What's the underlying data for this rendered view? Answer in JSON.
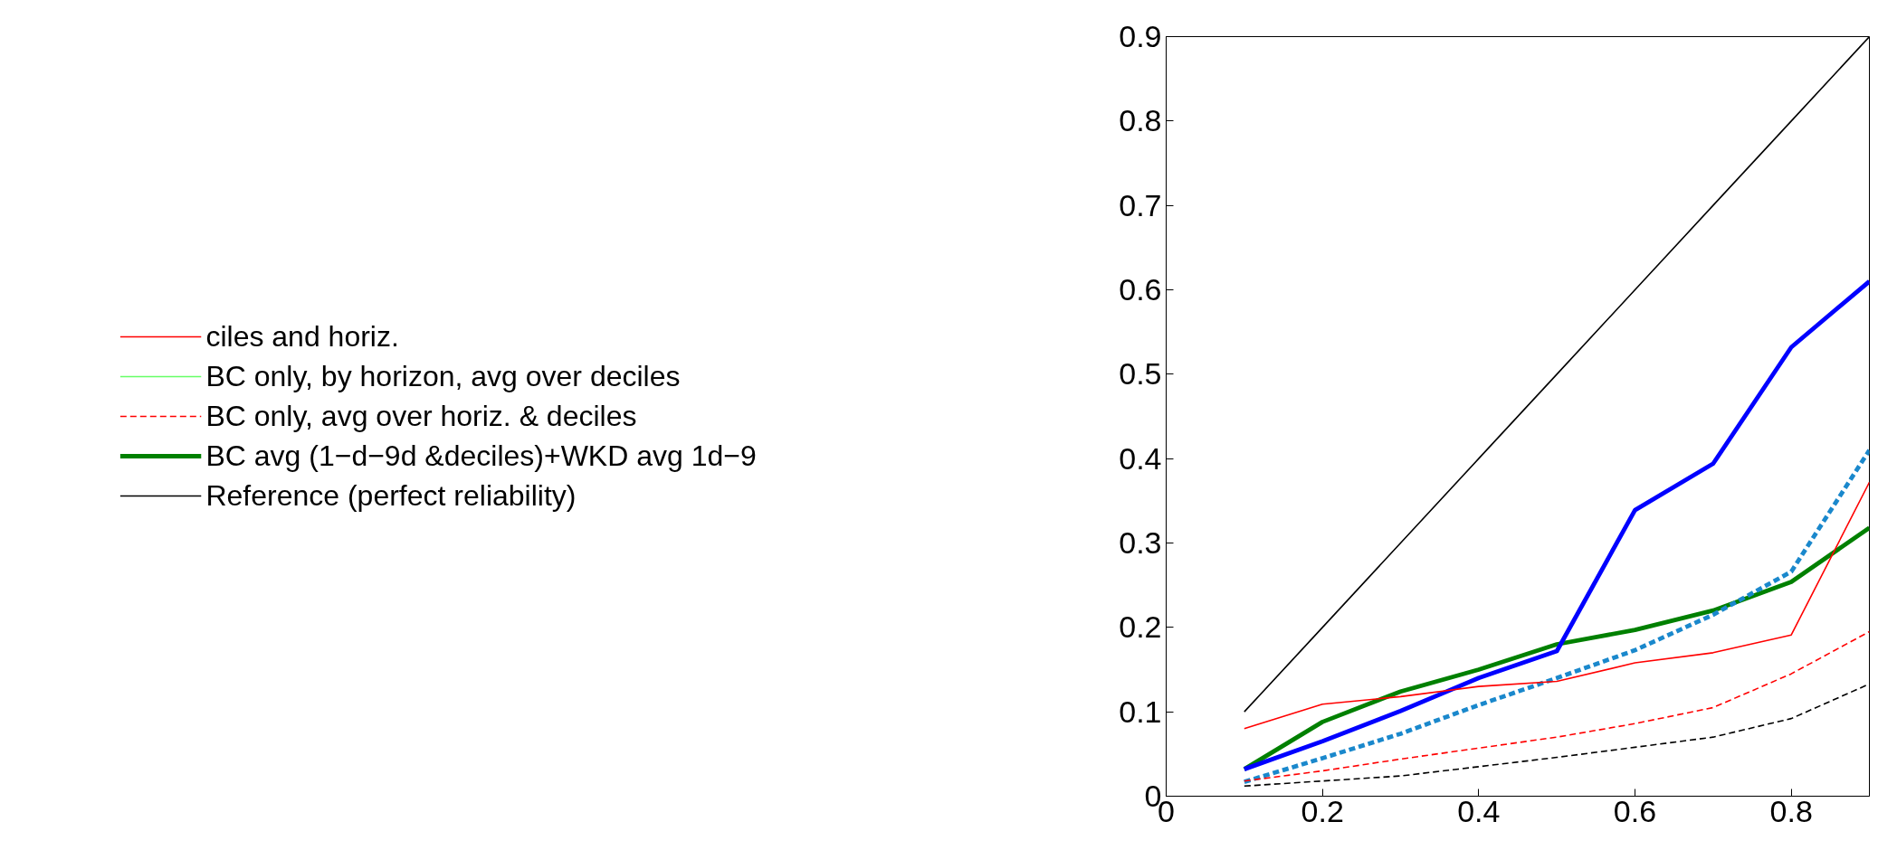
{
  "chart_data": {
    "type": "line",
    "x": [
      0.1,
      0.2,
      0.3,
      0.4,
      0.5,
      0.6,
      0.7,
      0.8,
      0.9
    ],
    "xlim": [
      0,
      0.9
    ],
    "ylim": [
      0,
      0.9
    ],
    "xticks": [
      0,
      0.2,
      0.4,
      0.6,
      0.8
    ],
    "yticks": [
      0,
      0.1,
      0.2,
      0.3,
      0.4,
      0.5,
      0.6,
      0.7,
      0.8,
      0.9
    ],
    "grid": false,
    "legend": "left",
    "marker": "none",
    "series": [
      {
        "name": "ciles and horiz.",
        "color": "#ff0000",
        "line_style": "solid",
        "values": [
          0.08,
          0.109,
          0.118,
          0.13,
          0.136,
          0.158,
          0.17,
          0.191,
          0.372
        ]
      },
      {
        "name": "BC only, by horizon, avg over deciles",
        "color": "#66ff66",
        "line_style": "solid",
        "values": [
          null,
          null,
          null,
          null,
          null,
          null,
          null,
          null,
          null
        ]
      },
      {
        "name": "BC only, avg over horiz. & deciles",
        "color": "#ff0000",
        "line_style": "dashed",
        "values": [
          0.018,
          0.03,
          0.044,
          0.057,
          0.07,
          0.086,
          0.105,
          0.145,
          0.195
        ]
      },
      {
        "name": "BC avg (1−d−9d &deciles)+WKD avg 1d−9",
        "color": "#008000",
        "line_style": "solid",
        "values": [
          0.032,
          0.088,
          0.124,
          0.15,
          0.18,
          0.197,
          0.22,
          0.254,
          0.318
        ]
      },
      {
        "name": "Reference (perfect reliability)",
        "color": "#000000",
        "line_style": "solid",
        "values": [
          0.1,
          0.2,
          0.3,
          0.4,
          0.5,
          0.6,
          0.7,
          0.8,
          0.9
        ]
      },
      {
        "color": "#0000ff",
        "line_style": "solid",
        "values": [
          0.032,
          0.065,
          0.101,
          0.14,
          0.172,
          0.339,
          0.394,
          0.532,
          0.61
        ]
      },
      {
        "color": "#1a88cc",
        "line_style": "dashed",
        "values": [
          0.017,
          0.045,
          0.074,
          0.108,
          0.14,
          0.173,
          0.215,
          0.266,
          0.41
        ]
      },
      {
        "color": "#000000",
        "line_style": "dashed",
        "values": [
          0.012,
          0.018,
          0.024,
          0.035,
          0.046,
          0.058,
          0.07,
          0.092,
          0.133
        ]
      }
    ]
  }
}
